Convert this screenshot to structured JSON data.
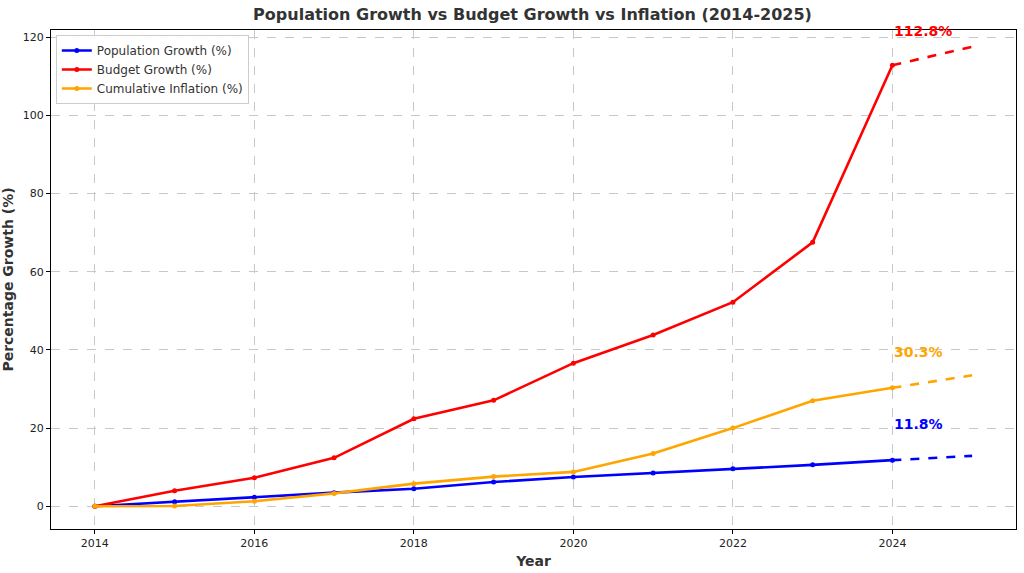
{
  "chart_data": {
    "type": "line",
    "title": "Population Growth vs Budget Growth vs Inflation (2014-2025)",
    "x_label": "Year",
    "y_label": "Percentage Growth (%)",
    "x": [
      2014,
      2015,
      2016,
      2017,
      2018,
      2019,
      2020,
      2021,
      2022,
      2023,
      2024,
      2025
    ],
    "series": [
      {
        "name": "Population Growth (%)",
        "color": "#0000ff",
        "line_style": "solid",
        "marker": "circle",
        "values": [
          0,
          1.2,
          2.3,
          3.5,
          4.5,
          6.2,
          7.5,
          8.5,
          9.6,
          10.6,
          11.8,
          null
        ]
      },
      {
        "name": "Budget Growth (%)",
        "color": "#ff0000",
        "line_style": "solid",
        "marker": "circle",
        "values": [
          0,
          4.0,
          7.3,
          12.4,
          22.4,
          27.1,
          36.6,
          43.8,
          52.2,
          67.5,
          112.8,
          null
        ]
      },
      {
        "name": "Cumulative Inflation (%)",
        "color": "#ffa500",
        "line_style": "solid",
        "marker": "circle",
        "values": [
          0,
          0.1,
          1.3,
          3.3,
          5.8,
          7.6,
          8.8,
          13.5,
          20.0,
          27.0,
          30.3,
          null
        ]
      },
      {
        "name": "Population Growth (%)",
        "color": "#0000ff",
        "line_style": "dashed",
        "marker": "none",
        "values": [
          null,
          null,
          null,
          null,
          null,
          null,
          null,
          null,
          null,
          null,
          11.8,
          12.9
        ]
      },
      {
        "name": "Budget Growth (%)",
        "color": "#ff0000",
        "line_style": "dashed",
        "marker": "none",
        "values": [
          null,
          null,
          null,
          null,
          null,
          null,
          null,
          null,
          null,
          null,
          112.8,
          117.5
        ]
      },
      {
        "name": "Cumulative Inflation (%)",
        "color": "#ffa500",
        "line_style": "dashed",
        "marker": "none",
        "values": [
          null,
          null,
          null,
          null,
          null,
          null,
          null,
          null,
          null,
          null,
          30.3,
          33.5
        ]
      }
    ],
    "annotations": [
      {
        "text": "112.8%",
        "x": 2024,
        "y": 119,
        "color": "#ff0000"
      },
      {
        "text": "30.3%",
        "x": 2024,
        "y": 37,
        "color": "#ffa500"
      },
      {
        "text": "11.8%",
        "x": 2024,
        "y": 18.5,
        "color": "#0000ff"
      }
    ],
    "xlim": [
      2013.45,
      2025.55
    ],
    "xticks": [
      2014,
      2016,
      2018,
      2020,
      2022,
      2024
    ],
    "ylim": [
      -5.8,
      121.8
    ],
    "yticks": [
      0,
      20,
      40,
      60,
      80,
      100,
      120
    ],
    "grid": true,
    "legend": "upper left"
  }
}
